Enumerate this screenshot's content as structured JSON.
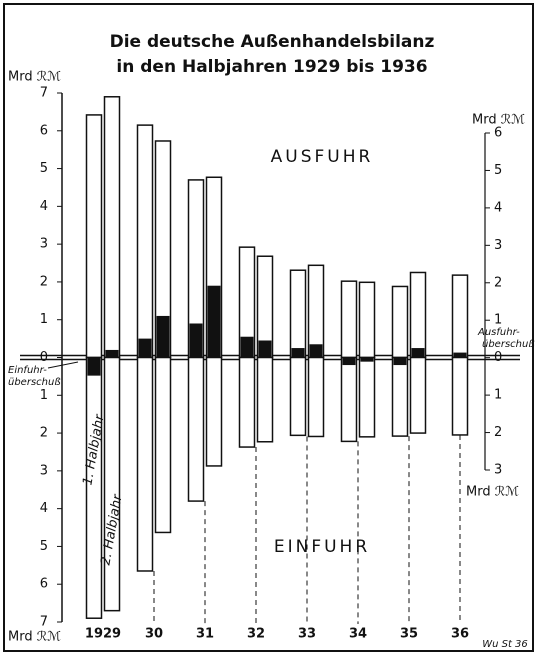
{
  "chart_data": {
    "type": "bar",
    "title": [
      "Die deutsche Außenhandelsbilanz",
      "in den Halbjahren 1929 bis 1936"
    ],
    "ylabel": "Mrd ℛℳ",
    "y2label": "Mrd ℛℳ",
    "categories": [
      "1929",
      null,
      "30",
      null,
      "31",
      null,
      "32",
      null,
      "33",
      null,
      "34",
      null,
      "35",
      null,
      "36"
    ],
    "series": [
      {
        "name": "AUSFUHR",
        "color": "#ffffff",
        "values": [
          6.42,
          6.9,
          6.15,
          5.73,
          4.7,
          4.77,
          2.92,
          2.68,
          2.31,
          2.44,
          2.02,
          1.99,
          1.88,
          2.25,
          2.18
        ]
      },
      {
        "name": "EINFUHR",
        "color": "#ffffff",
        "values": [
          -6.9,
          -6.7,
          -5.65,
          -4.63,
          -3.8,
          -2.87,
          -2.37,
          -2.23,
          -2.06,
          -2.09,
          -2.22,
          -2.1,
          -2.08,
          -2.0,
          -2.05
        ]
      }
    ],
    "surplus_color": "#111111",
    "export_surplus_label": [
      "Ausfuhr-",
      "überschuß"
    ],
    "import_surplus_label": [
      "Einfuhr-",
      "überschuß"
    ],
    "half_labels": [
      "1. Halbjahr",
      "2. Halbjahr"
    ],
    "source": "Wu St 36",
    "ylim": [
      -7,
      7
    ],
    "yticks": [
      7,
      6,
      5,
      4,
      3,
      2,
      1,
      0,
      {
        "value": -1,
        "label": "1"
      },
      {
        "value": -2,
        "label": "2"
      },
      {
        "value": -3,
        "label": "3"
      },
      {
        "value": -4,
        "label": "4"
      },
      {
        "value": -5,
        "label": "5"
      },
      {
        "value": -6,
        "label": "6"
      },
      {
        "value": -7,
        "label": "7"
      }
    ],
    "y2lim": [
      -3,
      6
    ],
    "y2ticks": [
      6,
      5,
      4,
      3,
      2,
      1,
      0,
      {
        "value": -1,
        "label": "1"
      },
      {
        "value": -2,
        "label": "2"
      },
      {
        "value": -3,
        "label": "3"
      }
    ]
  }
}
